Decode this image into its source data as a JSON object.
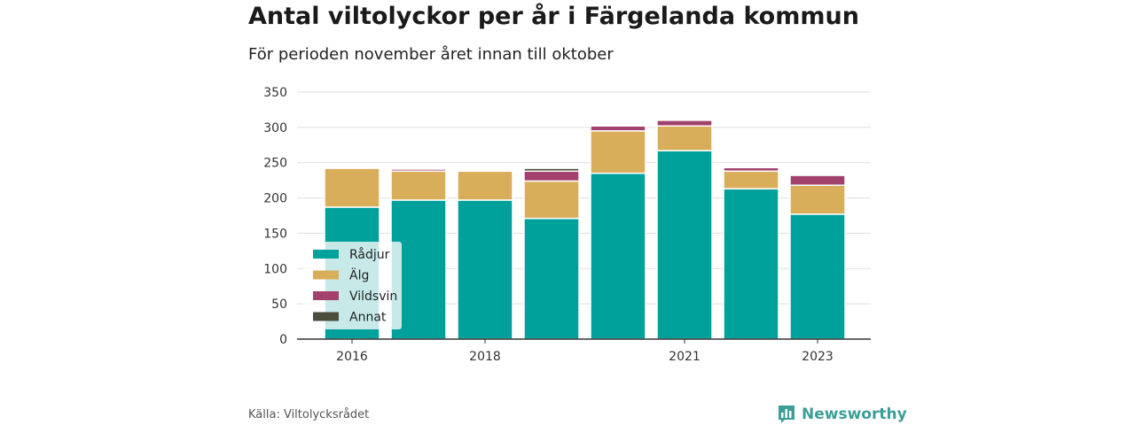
{
  "title": "Antal viltolyckor per år i Färgelanda kommun",
  "subtitle": "För perioden november året innan till oktober",
  "source": "Källa: Viltolycksrådet",
  "brand": {
    "name": "Newsworthy",
    "icon": "newsworthy-logo-icon"
  },
  "colors": {
    "radjur": "#00a19a",
    "alg": "#d9ae5a",
    "vildsvin": "#a2416b",
    "annat": "#4b4e3f",
    "grid": "#dddddd",
    "axis": "#333333",
    "brand": "#3c9e96"
  },
  "chart_data": {
    "type": "bar",
    "stacked": true,
    "categories": [
      "2016",
      "2017",
      "2018",
      "2019",
      "2020",
      "2021",
      "2022",
      "2023"
    ],
    "x_tick_labels": [
      "2016",
      "",
      "2018",
      "",
      "",
      "2021",
      "",
      "2023"
    ],
    "series": [
      {
        "name": "Rådjur",
        "color": "#00a19a",
        "values": [
          187,
          197,
          197,
          171,
          235,
          267,
          213,
          177
        ]
      },
      {
        "name": "Älg",
        "color": "#d9ae5a",
        "values": [
          55,
          41,
          41,
          53,
          60,
          35,
          25,
          41
        ]
      },
      {
        "name": "Vildsvin",
        "color": "#a2416b",
        "values": [
          0,
          3,
          0,
          14,
          7,
          8,
          5,
          14
        ]
      },
      {
        "name": "Annat",
        "color": "#4b4e3f",
        "values": [
          0,
          1,
          0,
          4,
          0,
          0,
          0,
          0
        ]
      }
    ],
    "ylim": [
      0,
      350
    ],
    "yticks": [
      0,
      50,
      100,
      150,
      200,
      250,
      300,
      350
    ],
    "grid": true,
    "legend_position": "bottom-left",
    "xlabel": "",
    "ylabel": ""
  }
}
